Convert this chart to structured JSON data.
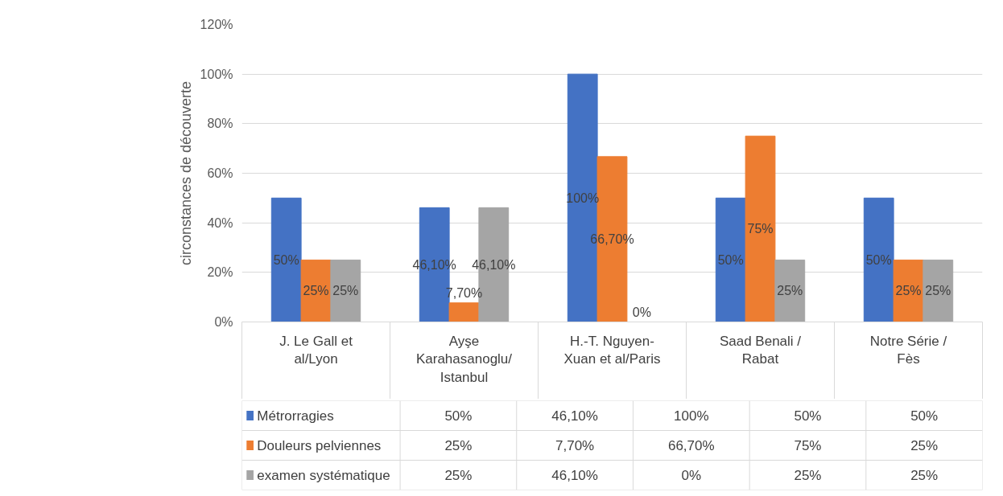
{
  "chart_data": {
    "type": "bar",
    "ylabel": "circonstances de découverte",
    "categories": [
      "J. Le Gall et al/Lyon",
      "Ayşe Karahasanoglu/ Istanbul",
      "H.-T. Nguyen-Xuan et al/Paris",
      "Saad Benali / Rabat",
      "Notre Série / Fès"
    ],
    "series": [
      {
        "name": "Métrorragies",
        "color": "#4472c4",
        "values": [
          50,
          46.1,
          100,
          50,
          50
        ],
        "value_labels": [
          "50%",
          "46,10%",
          "100%",
          "50%",
          "50%"
        ]
      },
      {
        "name": "Douleurs pelviennes",
        "color": "#ed7d31",
        "values": [
          25,
          7.7,
          66.7,
          75,
          25
        ],
        "value_labels": [
          "25%",
          "7,70%",
          "66,70%",
          "75%",
          "25%"
        ]
      },
      {
        "name": "examen systématique",
        "color": "#a5a5a5",
        "values": [
          25,
          46.1,
          0,
          25,
          25
        ],
        "value_labels": [
          "25%",
          "46,10%",
          "0%",
          "25%",
          "25%"
        ]
      }
    ],
    "ylim": [
      0,
      120
    ],
    "yticks": [
      {
        "value": 0,
        "label": "0%"
      },
      {
        "value": 20,
        "label": "20%"
      },
      {
        "value": 40,
        "label": "40%"
      },
      {
        "value": 60,
        "label": "60%"
      },
      {
        "value": 80,
        "label": "80%"
      },
      {
        "value": 100,
        "label": "100%"
      },
      {
        "value": 120,
        "label": "120%"
      }
    ],
    "grid": "y",
    "legend": "bottom"
  }
}
